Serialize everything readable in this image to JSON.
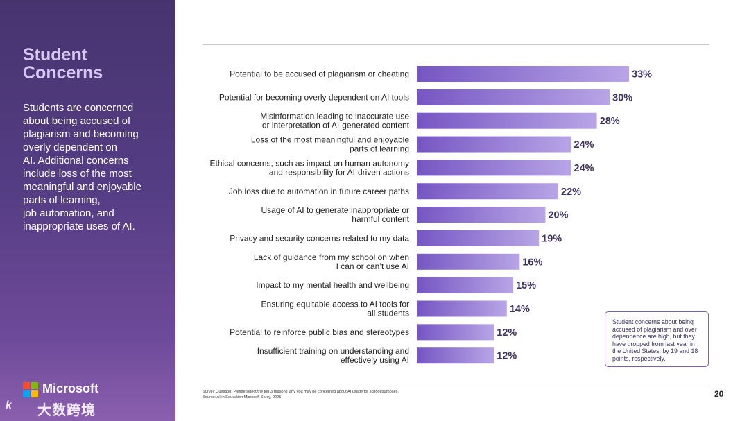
{
  "sidebar": {
    "title_line1": "Student",
    "title_line2": "Concerns",
    "body_lines": [
      "Students are concerned",
      "about being accused of",
      "plagiarism and becoming",
      "overly dependent on",
      "AI. Additional concerns",
      "include loss of the most",
      "meaningful and enjoyable",
      "parts of learning,",
      "job automation, and",
      "inappropriate uses of AI."
    ],
    "logo_text": "Microsoft",
    "watermark_icon": "k",
    "watermark_text": "大数跨境"
  },
  "colors": {
    "bar_start": "#7656c3",
    "bar_end": "#b8a5e6",
    "logo_red": "#f25022",
    "logo_green": "#7fba00",
    "logo_blue": "#00a4ef",
    "logo_yellow": "#ffb900"
  },
  "chart_data": {
    "type": "bar",
    "orientation": "horizontal",
    "title": "",
    "xlabel": "",
    "ylabel": "",
    "xlim": [
      0,
      33
    ],
    "value_suffix": "%",
    "categories": [
      [
        "Potential to be accused of plagiarism or cheating"
      ],
      [
        "Potential for becoming overly dependent on AI tools"
      ],
      [
        "Misinformation leading to inaccurate use",
        "or interpretation of AI-generated content"
      ],
      [
        "Loss of the most meaningful and enjoyable",
        "parts of learning"
      ],
      [
        "Ethical concerns, such as impact on human autonomy",
        "and responsibility for AI-driven actions"
      ],
      [
        "Job loss due to automation in future career paths"
      ],
      [
        "Usage of AI to generate inappropriate or",
        "harmful content"
      ],
      [
        "Privacy and security concerns related to my data"
      ],
      [
        "Lack of guidance from my school on when",
        "I can or can’t use AI"
      ],
      [
        "Impact to my mental health and wellbeing"
      ],
      [
        "Ensuring equitable access to AI tools for",
        "all students"
      ],
      [
        "Potential to reinforce public bias and stereotypes"
      ],
      [
        "Insufficient training on understanding and",
        "effectively using AI"
      ]
    ],
    "values": [
      33,
      30,
      28,
      24,
      24,
      22,
      20,
      19,
      16,
      15,
      14,
      12,
      12
    ],
    "value_labels": [
      "33%",
      "30%",
      "28%",
      "24%",
      "24%",
      "22%",
      "20%",
      "19%",
      "16%",
      "15%",
      "14%",
      "12%",
      "12%"
    ]
  },
  "callout": {
    "lines": [
      "Student concerns about being",
      "accused of plagiarism and over",
      "dependence are high, but they",
      "have dropped from last year in",
      "the United States, by 19 and 18",
      "points, respectively."
    ]
  },
  "footnote": {
    "question": "Survey Question: Please select the top 3 reasons why you may be concerned about AI usage for school purposes.",
    "source": "Source: AI in Education Microsoft Study, 2025"
  },
  "page_number": "20"
}
